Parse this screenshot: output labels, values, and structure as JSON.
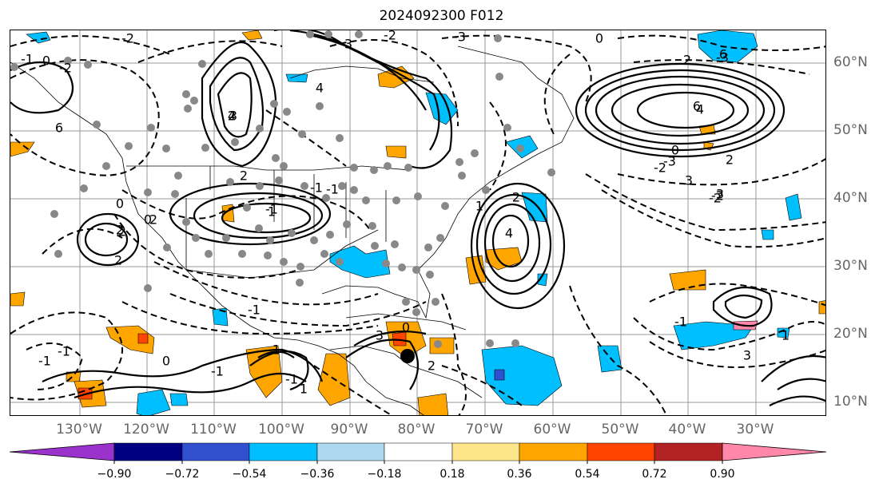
{
  "title": "2024092300 F012",
  "longitude_labels": [
    "130°W",
    "120°W",
    "110°W",
    "100°W",
    "90°W",
    "80°W",
    "70°W",
    "60°W",
    "50°W",
    "40°W",
    "30°W"
  ],
  "latitude_labels": [
    "60°N",
    "50°N",
    "40°N",
    "30°N",
    "20°N",
    "10°N"
  ],
  "contour_labels": [
    "-2",
    "-2",
    "0",
    "-1",
    "6",
    "4",
    "3",
    "-2",
    "-3",
    "0",
    "2",
    "6",
    "4",
    "0",
    "-2",
    "-3",
    "3",
    "2",
    "-2",
    "-2",
    "2",
    "2",
    "0",
    "-1",
    "-1",
    "-1",
    "0",
    "4",
    "2",
    "1",
    "2",
    "3",
    "-1",
    "-1",
    "0",
    "-1",
    "-1",
    "-1",
    "1",
    "2",
    "3",
    "0",
    "-1",
    "-1",
    "1",
    "3",
    "6",
    "4",
    "2",
    "1",
    "0",
    "-3",
    "2",
    "2",
    "3"
  ],
  "colorbar": {
    "tick_labels": [
      "−0.90",
      "−0.72",
      "−0.54",
      "−0.36",
      "−0.18",
      "0.18",
      "0.36",
      "0.54",
      "0.72",
      "0.90"
    ],
    "colors": [
      "#9933cc",
      "#000080",
      "#3050d0",
      "#00bfff",
      "#add8f0",
      "#ffffff",
      "#fde68a",
      "#ffa500",
      "#ff4500",
      "#b22222",
      "#ff88aa"
    ]
  },
  "shading_colors": {
    "light_blue": "#add8f0",
    "blue": "#00bfff",
    "mid_blue": "#3050d0",
    "yellow": "#fde68a",
    "orange": "#ffa500",
    "red_orange": "#ff4500",
    "pink": "#ff88aa"
  },
  "marker_color": "#888888",
  "storm_marker_color": "#000000"
}
